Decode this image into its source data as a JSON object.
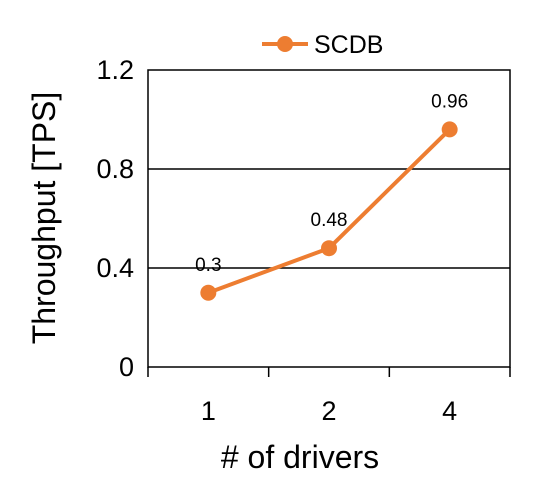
{
  "chart_data": {
    "type": "line",
    "categories": [
      "1",
      "2",
      "4"
    ],
    "series": [
      {
        "name": "SCDB",
        "values": [
          0.3,
          0.48,
          0.96
        ],
        "color": "#ED7D31"
      }
    ],
    "data_labels": [
      "0.3",
      "0.48",
      "0.96"
    ],
    "xlabel": "# of drivers",
    "ylabel": "Throughput [TPS]",
    "ylim": [
      0,
      1.2
    ],
    "yticks": [
      0,
      0.4,
      0.8,
      1.2
    ],
    "ytick_labels": [
      "0",
      "0.4",
      "0.8",
      "1.2"
    ],
    "grid": "horizontal",
    "legend_position": "top"
  }
}
